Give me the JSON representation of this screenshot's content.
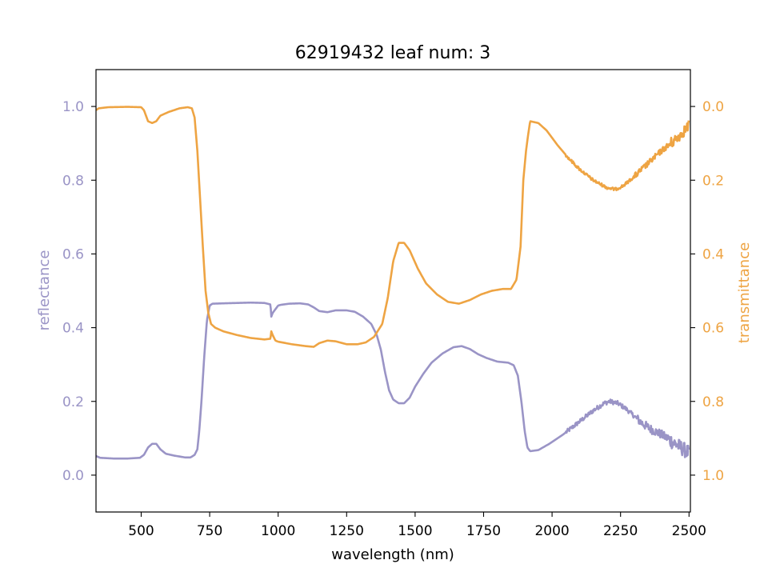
{
  "chart_data": {
    "type": "line",
    "title": "62919432 leaf num: 3",
    "xlabel": "wavelength (nm)",
    "xlim": [
      335,
      2505
    ],
    "xticks": [
      500,
      750,
      1000,
      1250,
      1500,
      1750,
      2000,
      2250,
      2500
    ],
    "left_axis": {
      "label": "reflectance",
      "color": "#9a94c6",
      "ylim": [
        -0.1,
        1.1
      ],
      "ticks": [
        0.0,
        0.2,
        0.4,
        0.6,
        0.8,
        1.0
      ],
      "tick_labels": [
        "0.0",
        "0.2",
        "0.4",
        "0.6",
        "0.8",
        "1.0"
      ]
    },
    "right_axis": {
      "label": "transmittance",
      "color": "#eea443",
      "ylim": [
        1.1,
        -0.1
      ],
      "inverted": true,
      "ticks": [
        0.0,
        0.2,
        0.4,
        0.6,
        0.8,
        1.0
      ],
      "tick_labels": [
        "0.0",
        "0.2",
        "0.4",
        "0.6",
        "0.8",
        "1.0"
      ]
    },
    "series": [
      {
        "axis": "left",
        "color": "#9a94c6",
        "points": [
          [
            335,
            0.052
          ],
          [
            350,
            0.047
          ],
          [
            400,
            0.045
          ],
          [
            450,
            0.045
          ],
          [
            495,
            0.047
          ],
          [
            510,
            0.055
          ],
          [
            525,
            0.075
          ],
          [
            540,
            0.085
          ],
          [
            555,
            0.085
          ],
          [
            570,
            0.07
          ],
          [
            590,
            0.058
          ],
          [
            620,
            0.053
          ],
          [
            660,
            0.048
          ],
          [
            680,
            0.048
          ],
          [
            695,
            0.055
          ],
          [
            705,
            0.07
          ],
          [
            712,
            0.12
          ],
          [
            720,
            0.2
          ],
          [
            730,
            0.32
          ],
          [
            740,
            0.42
          ],
          [
            750,
            0.46
          ],
          [
            760,
            0.465
          ],
          [
            800,
            0.466
          ],
          [
            850,
            0.467
          ],
          [
            900,
            0.468
          ],
          [
            950,
            0.467
          ],
          [
            972,
            0.463
          ],
          [
            975,
            0.43
          ],
          [
            980,
            0.44
          ],
          [
            990,
            0.45
          ],
          [
            1000,
            0.46
          ],
          [
            1010,
            0.462
          ],
          [
            1040,
            0.465
          ],
          [
            1080,
            0.466
          ],
          [
            1110,
            0.463
          ],
          [
            1130,
            0.455
          ],
          [
            1150,
            0.445
          ],
          [
            1180,
            0.442
          ],
          [
            1210,
            0.447
          ],
          [
            1250,
            0.447
          ],
          [
            1280,
            0.443
          ],
          [
            1310,
            0.43
          ],
          [
            1340,
            0.41
          ],
          [
            1360,
            0.38
          ],
          [
            1375,
            0.34
          ],
          [
            1390,
            0.28
          ],
          [
            1405,
            0.23
          ],
          [
            1420,
            0.205
          ],
          [
            1440,
            0.195
          ],
          [
            1460,
            0.195
          ],
          [
            1480,
            0.21
          ],
          [
            1500,
            0.24
          ],
          [
            1530,
            0.275
          ],
          [
            1560,
            0.305
          ],
          [
            1600,
            0.33
          ],
          [
            1640,
            0.347
          ],
          [
            1670,
            0.35
          ],
          [
            1700,
            0.342
          ],
          [
            1730,
            0.328
          ],
          [
            1760,
            0.318
          ],
          [
            1800,
            0.308
          ],
          [
            1840,
            0.305
          ],
          [
            1860,
            0.298
          ],
          [
            1875,
            0.27
          ],
          [
            1888,
            0.2
          ],
          [
            1900,
            0.12
          ],
          [
            1910,
            0.075
          ],
          [
            1920,
            0.065
          ],
          [
            1950,
            0.068
          ],
          [
            1990,
            0.085
          ],
          [
            2040,
            0.11
          ],
          [
            2100,
            0.145
          ],
          [
            2150,
            0.175
          ],
          [
            2190,
            0.195
          ],
          [
            2210,
            0.2
          ],
          [
            2240,
            0.195
          ],
          [
            2270,
            0.18
          ],
          [
            2300,
            0.16
          ],
          [
            2330,
            0.14
          ],
          [
            2360,
            0.125
          ],
          [
            2400,
            0.11
          ],
          [
            2430,
            0.095
          ],
          [
            2460,
            0.08
          ],
          [
            2480,
            0.07
          ],
          [
            2500,
            0.06
          ]
        ],
        "noise": [
          {
            "from": 2050,
            "to": 2310,
            "amp": 0.006
          },
          {
            "from": 2310,
            "to": 2420,
            "amp": 0.012
          },
          {
            "from": 2420,
            "to": 2500,
            "amp": 0.02
          }
        ]
      },
      {
        "axis": "right",
        "color": "#eea443",
        "points": [
          [
            335,
            0.01
          ],
          [
            345,
            0.005
          ],
          [
            380,
            0.002
          ],
          [
            450,
            0.001
          ],
          [
            500,
            0.002
          ],
          [
            510,
            0.01
          ],
          [
            525,
            0.04
          ],
          [
            540,
            0.045
          ],
          [
            555,
            0.04
          ],
          [
            570,
            0.025
          ],
          [
            600,
            0.015
          ],
          [
            640,
            0.005
          ],
          [
            670,
            0.002
          ],
          [
            685,
            0.005
          ],
          [
            695,
            0.03
          ],
          [
            705,
            0.12
          ],
          [
            715,
            0.25
          ],
          [
            725,
            0.38
          ],
          [
            735,
            0.5
          ],
          [
            745,
            0.56
          ],
          [
            755,
            0.59
          ],
          [
            770,
            0.6
          ],
          [
            800,
            0.61
          ],
          [
            850,
            0.62
          ],
          [
            900,
            0.628
          ],
          [
            950,
            0.632
          ],
          [
            972,
            0.63
          ],
          [
            975,
            0.61
          ],
          [
            980,
            0.62
          ],
          [
            990,
            0.635
          ],
          [
            1000,
            0.638
          ],
          [
            1050,
            0.645
          ],
          [
            1100,
            0.65
          ],
          [
            1130,
            0.652
          ],
          [
            1150,
            0.642
          ],
          [
            1180,
            0.635
          ],
          [
            1210,
            0.637
          ],
          [
            1250,
            0.645
          ],
          [
            1290,
            0.645
          ],
          [
            1320,
            0.64
          ],
          [
            1350,
            0.625
          ],
          [
            1380,
            0.59
          ],
          [
            1400,
            0.52
          ],
          [
            1420,
            0.42
          ],
          [
            1440,
            0.37
          ],
          [
            1460,
            0.37
          ],
          [
            1480,
            0.39
          ],
          [
            1510,
            0.44
          ],
          [
            1540,
            0.48
          ],
          [
            1580,
            0.51
          ],
          [
            1620,
            0.53
          ],
          [
            1660,
            0.535
          ],
          [
            1700,
            0.525
          ],
          [
            1740,
            0.51
          ],
          [
            1780,
            0.5
          ],
          [
            1820,
            0.495
          ],
          [
            1850,
            0.495
          ],
          [
            1870,
            0.47
          ],
          [
            1885,
            0.38
          ],
          [
            1895,
            0.2
          ],
          [
            1905,
            0.12
          ],
          [
            1912,
            0.08
          ],
          [
            1920,
            0.04
          ],
          [
            1950,
            0.045
          ],
          [
            1980,
            0.065
          ],
          [
            2020,
            0.105
          ],
          [
            2060,
            0.14
          ],
          [
            2100,
            0.17
          ],
          [
            2150,
            0.2
          ],
          [
            2200,
            0.22
          ],
          [
            2230,
            0.225
          ],
          [
            2260,
            0.215
          ],
          [
            2300,
            0.19
          ],
          [
            2350,
            0.155
          ],
          [
            2400,
            0.12
          ],
          [
            2450,
            0.09
          ],
          [
            2490,
            0.06
          ],
          [
            2500,
            0.05
          ]
        ],
        "noise": [
          {
            "from": 2050,
            "to": 2300,
            "amp": 0.004
          },
          {
            "from": 2300,
            "to": 2420,
            "amp": 0.008
          },
          {
            "from": 2420,
            "to": 2500,
            "amp": 0.015
          }
        ]
      }
    ]
  }
}
